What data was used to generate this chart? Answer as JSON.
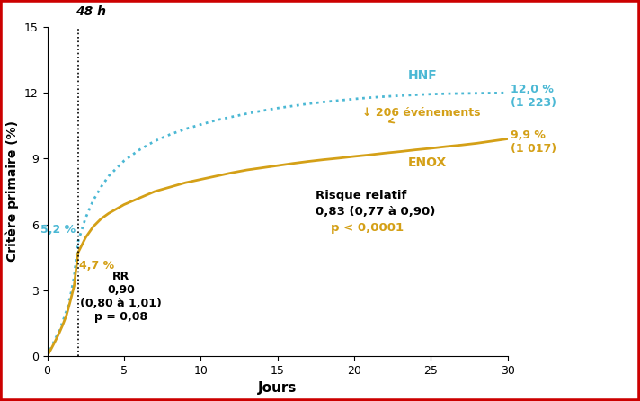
{
  "title": "",
  "xlabel": "Jours",
  "ylabel": "Critère primaire (%)",
  "xlim": [
    0,
    30
  ],
  "ylim": [
    0,
    15
  ],
  "xticks": [
    0,
    5,
    10,
    15,
    20,
    25,
    30
  ],
  "yticks": [
    0,
    3,
    6,
    9,
    12,
    15
  ],
  "vline_x": 2,
  "vline_label": "48 h",
  "hnf_color": "#4BB8D4",
  "enox_color": "#D4A017",
  "background_color": "#ffffff",
  "border_color": "#cc0000",
  "hnf_label": "HNF",
  "enox_label": "ENOX",
  "hnf_at48h": "5,2 %",
  "enox_at48h": "4,7 %",
  "rr_early_text": "RR\n0,90\n(0,80 à 1,01)\np = 0,08",
  "rr_late_line1": "Risque relatif",
  "rr_late_line2": "0,83 (0,77 à 0,90)",
  "p_late_text": "p < 0,0001",
  "events_text": "↓ 206 événements",
  "hnf_x": [
    0,
    0.1,
    0.3,
    0.5,
    0.75,
    1.0,
    1.25,
    1.5,
    1.75,
    2.0,
    2.5,
    3.0,
    3.5,
    4.0,
    5.0,
    6.0,
    7.0,
    8.0,
    9.0,
    10.0,
    11.0,
    12.0,
    13.0,
    14.0,
    15.0,
    16.0,
    17.0,
    18.0,
    19.0,
    20.0,
    21.0,
    22.0,
    23.0,
    24.0,
    25.0,
    26.0,
    27.0,
    28.0,
    29.0,
    30.0
  ],
  "hnf_y": [
    0,
    0.15,
    0.45,
    0.75,
    1.1,
    1.55,
    2.05,
    2.7,
    3.6,
    5.2,
    6.3,
    7.1,
    7.7,
    8.2,
    8.9,
    9.4,
    9.8,
    10.1,
    10.35,
    10.55,
    10.75,
    10.9,
    11.05,
    11.18,
    11.3,
    11.4,
    11.5,
    11.58,
    11.65,
    11.72,
    11.78,
    11.83,
    11.87,
    11.91,
    11.94,
    11.96,
    11.97,
    11.98,
    11.99,
    12.0
  ],
  "enox_x": [
    0,
    0.1,
    0.3,
    0.5,
    0.75,
    1.0,
    1.25,
    1.5,
    1.75,
    2.0,
    2.5,
    3.0,
    3.5,
    4.0,
    5.0,
    6.0,
    7.0,
    8.0,
    9.0,
    10.0,
    11.0,
    12.0,
    13.0,
    14.0,
    15.0,
    16.0,
    17.0,
    18.0,
    19.0,
    20.0,
    21.0,
    22.0,
    23.0,
    24.0,
    25.0,
    26.0,
    27.0,
    28.0,
    29.0,
    30.0
  ],
  "enox_y": [
    0,
    0.12,
    0.38,
    0.65,
    1.0,
    1.4,
    1.85,
    2.5,
    3.2,
    4.7,
    5.4,
    5.9,
    6.25,
    6.5,
    6.9,
    7.2,
    7.5,
    7.7,
    7.9,
    8.05,
    8.2,
    8.35,
    8.48,
    8.58,
    8.68,
    8.78,
    8.87,
    8.95,
    9.02,
    9.1,
    9.17,
    9.25,
    9.32,
    9.4,
    9.47,
    9.55,
    9.62,
    9.7,
    9.8,
    9.9
  ]
}
